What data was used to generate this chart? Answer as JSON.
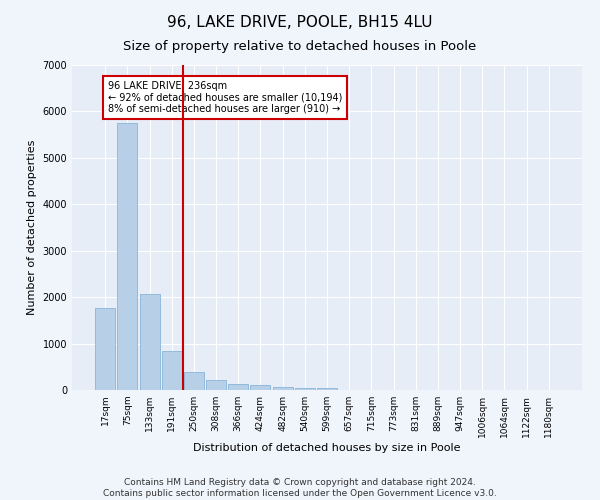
{
  "title": "96, LAKE DRIVE, POOLE, BH15 4LU",
  "subtitle": "Size of property relative to detached houses in Poole",
  "xlabel": "Distribution of detached houses by size in Poole",
  "ylabel": "Number of detached properties",
  "bar_color": "#b8cfe8",
  "bar_edge_color": "#7aadd4",
  "categories": [
    "17sqm",
    "75sqm",
    "133sqm",
    "191sqm",
    "250sqm",
    "308sqm",
    "366sqm",
    "424sqm",
    "482sqm",
    "540sqm",
    "599sqm",
    "657sqm",
    "715sqm",
    "773sqm",
    "831sqm",
    "889sqm",
    "947sqm",
    "1006sqm",
    "1064sqm",
    "1122sqm",
    "1180sqm"
  ],
  "values": [
    1760,
    5750,
    2060,
    830,
    380,
    220,
    120,
    110,
    70,
    50,
    50,
    0,
    0,
    0,
    0,
    0,
    0,
    0,
    0,
    0,
    0
  ],
  "vline_index": 4,
  "vline_color": "#cc0000",
  "annotation_text": "96 LAKE DRIVE: 236sqm\n← 92% of detached houses are smaller (10,194)\n8% of semi-detached houses are larger (910) →",
  "annotation_box_color": "#ffffff",
  "annotation_box_edge_color": "#cc0000",
  "ylim": [
    0,
    7000
  ],
  "yticks": [
    0,
    1000,
    2000,
    3000,
    4000,
    5000,
    6000,
    7000
  ],
  "footer_line1": "Contains HM Land Registry data © Crown copyright and database right 2024.",
  "footer_line2": "Contains public sector information licensed under the Open Government Licence v3.0.",
  "bg_color": "#f0f4fb",
  "plot_bg_color": "#e6edf7",
  "grid_color": "#ffffff",
  "title_fontsize": 11,
  "subtitle_fontsize": 9.5,
  "label_fontsize": 8,
  "tick_fontsize": 6.5,
  "footer_fontsize": 6.5
}
